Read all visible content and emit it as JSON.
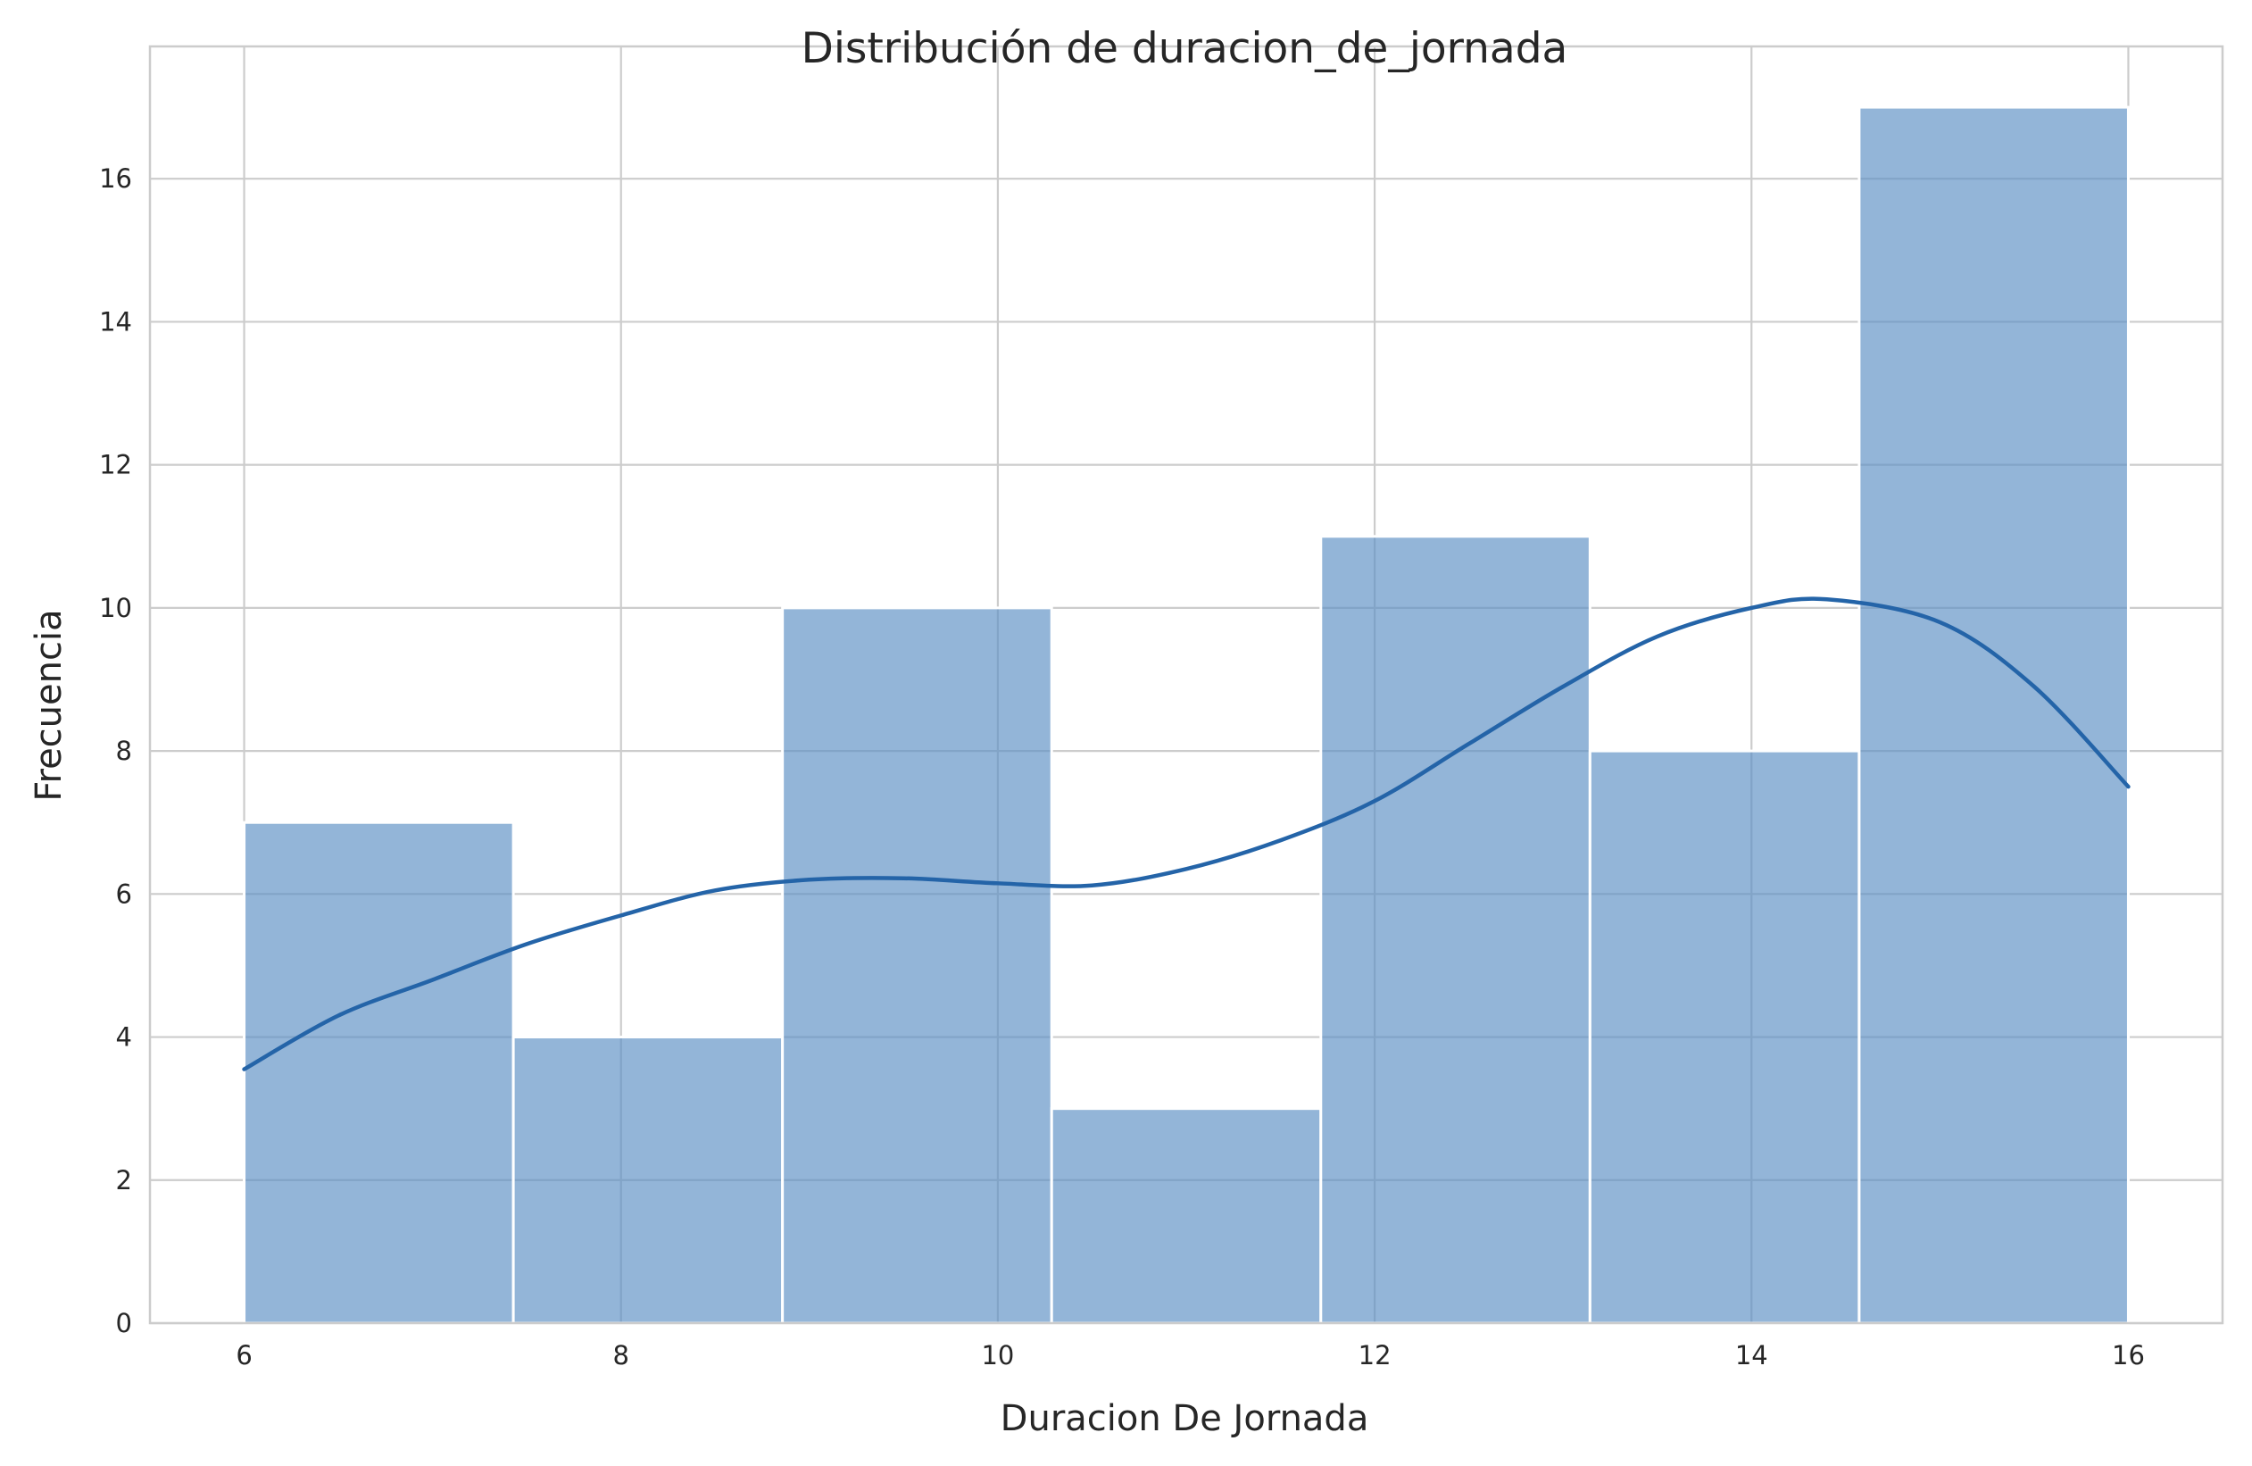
{
  "chart_data": {
    "type": "bar",
    "title": "Distribución de duracion_de_jornada",
    "xlabel": "Duracion De Jornada",
    "ylabel": "Frecuencia",
    "bin_edges": [
      6.0,
      7.4286,
      8.8571,
      10.2857,
      11.7143,
      13.1429,
      14.5714,
      16.0
    ],
    "values": [
      7,
      4,
      10,
      3,
      11,
      8,
      17
    ],
    "xlim": [
      5.5,
      16.5
    ],
    "ylim": [
      0,
      17.85
    ],
    "xticks": [
      6,
      8,
      10,
      12,
      14,
      16
    ],
    "yticks": [
      0,
      2,
      4,
      6,
      8,
      10,
      12,
      14,
      16
    ],
    "grid": true,
    "kde": {
      "x": [
        6.0,
        6.5,
        7.0,
        7.5,
        8.0,
        8.5,
        9.0,
        9.5,
        10.0,
        10.5,
        11.0,
        11.5,
        12.0,
        12.5,
        13.0,
        13.5,
        14.0,
        14.4,
        15.0,
        15.5,
        16.0
      ],
      "y": [
        3.55,
        4.3,
        4.8,
        5.3,
        5.7,
        6.05,
        6.2,
        6.22,
        6.15,
        6.12,
        6.35,
        6.75,
        7.3,
        8.1,
        8.9,
        9.6,
        10.0,
        10.12,
        9.8,
        8.9,
        7.5
      ]
    },
    "colors": {
      "bar_fill": "#5b8ec4",
      "bar_opacity": 0.66,
      "bar_edge": "#ffffff",
      "kde_line": "#2464a8",
      "grid": "#cccccc",
      "spine": "#cccccc"
    }
  }
}
